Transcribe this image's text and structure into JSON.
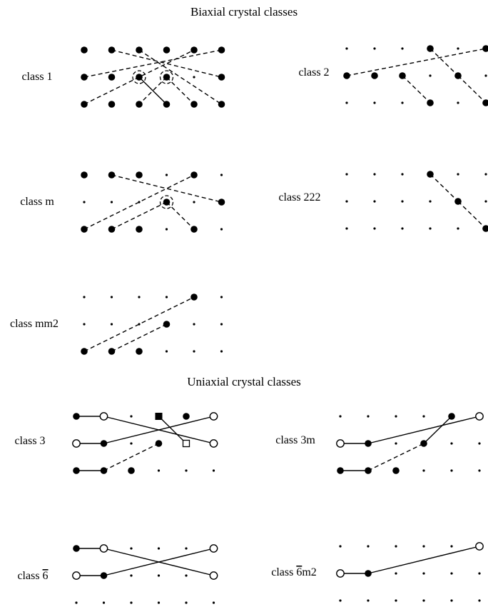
{
  "sections": {
    "biaxial_title": "Biaxial crystal classes",
    "uniaxial_title": "Uniaxial crystal classes"
  },
  "class_labels": {
    "c1": "class 1",
    "c2": "class 2",
    "cm": "class m",
    "c222": "class 222",
    "cmm2": "class mm2",
    "c3": "class 3",
    "c3m": "class 3m",
    "c6bar_prefix": "class ",
    "c6bar_over": "6",
    "c6barm2_prefix": "class ",
    "c6barm2_over": "6",
    "c6barm2_suffix": "m2"
  },
  "colors": {
    "ink": "#000000",
    "paper": "#ffffff"
  }
}
